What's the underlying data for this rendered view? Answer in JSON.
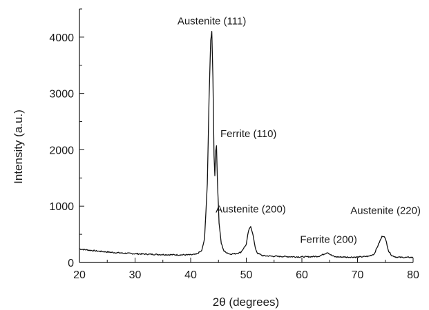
{
  "chart_data": {
    "type": "line",
    "xlabel": "2θ (degrees)",
    "ylabel": "Intensity (a.u.)",
    "xlim": [
      20,
      80
    ],
    "ylim": [
      0,
      4500
    ],
    "xticks": [
      20,
      30,
      40,
      50,
      60,
      70,
      80
    ],
    "yticks": [
      0,
      1000,
      2000,
      3000,
      4000
    ],
    "grid": false,
    "line_color": "#111111",
    "series": [
      {
        "x": [
          20,
          22,
          24,
          26,
          28,
          30,
          32,
          34,
          36,
          38,
          40,
          41,
          42,
          42.5,
          43,
          43.3,
          43.6,
          43.8,
          44.0,
          44.2,
          44.35,
          44.5,
          44.65,
          44.8,
          45.1,
          45.5,
          46,
          47,
          48,
          49,
          50,
          50.4,
          50.8,
          51.2,
          51.6,
          52,
          53,
          55,
          57,
          59,
          61,
          63,
          64,
          64.6,
          65,
          65.4,
          66,
          68,
          70,
          72,
          73,
          73.8,
          74.4,
          74.8,
          75.2,
          75.6,
          76.2,
          77,
          78,
          80
        ],
        "y": [
          240,
          215,
          195,
          178,
          165,
          155,
          148,
          142,
          138,
          135,
          135,
          145,
          210,
          420,
          1400,
          2900,
          3950,
          4100,
          3300,
          1900,
          1550,
          1980,
          2080,
          1500,
          700,
          340,
          200,
          150,
          155,
          180,
          320,
          560,
          640,
          500,
          260,
          165,
          120,
          110,
          105,
          100,
          100,
          110,
          150,
          180,
          150,
          120,
          100,
          95,
          95,
          110,
          150,
          330,
          460,
          470,
          360,
          200,
          120,
          95,
          90,
          90
        ]
      }
    ],
    "annotations": [
      {
        "text": "Austenite (111)",
        "x": 43.8,
        "y": 4100
      },
      {
        "text": "Ferrite (110)",
        "x": 44.6,
        "y": 2080
      },
      {
        "text": "Austenite (200)",
        "x": 50.8,
        "y": 640
      },
      {
        "text": "Ferrite (200)",
        "x": 64.8,
        "y": 180
      },
      {
        "text": "Austenite (220)",
        "x": 74.8,
        "y": 470
      }
    ]
  }
}
